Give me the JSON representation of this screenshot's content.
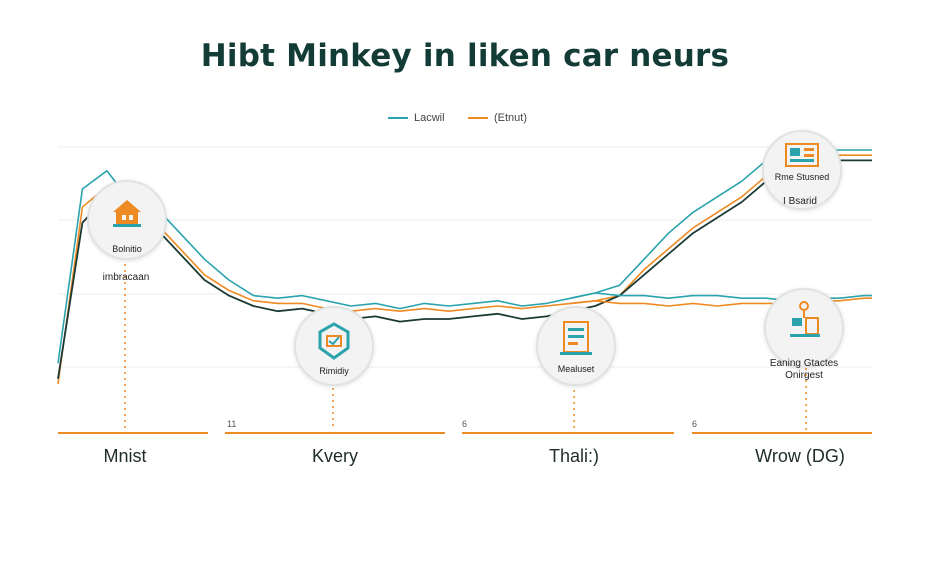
{
  "title": "Hibt Minkey in liken car neurs",
  "legend": [
    {
      "label": "Lacwil",
      "color": "#2aa3ad"
    },
    {
      "label": "(Etnut)",
      "color": "#ee8a22"
    }
  ],
  "sections": [
    {
      "label": "Mnist",
      "tick": ""
    },
    {
      "label": "Kvery",
      "tick": "11"
    },
    {
      "label": "Thali:)",
      "tick": "6"
    },
    {
      "label": "Wrow (DG)",
      "tick": "6"
    }
  ],
  "badges": [
    {
      "label": "Bolnitio",
      "icon": "house-icon"
    },
    {
      "label": "Rimidiy",
      "icon": "shield-icon"
    },
    {
      "label": "Mealuset",
      "icon": "document-icon"
    },
    {
      "label": "Rme Stusned",
      "icon": "board-icon"
    },
    {
      "label": "",
      "icon": "tools-icon"
    }
  ],
  "annotations": [
    {
      "text": "imbracaan"
    },
    {
      "text": "I Bsarid"
    },
    {
      "text": "Eaning Gtactes Onirgest"
    }
  ],
  "colors": {
    "teal": "#2aa3ad",
    "orange": "#ee8a22",
    "dark": "#1b3a36"
  },
  "chart_data": {
    "type": "line",
    "title": "Hibt Minkey in liken car neurs",
    "xlabel": "",
    "ylabel": "",
    "x": [
      0,
      3,
      6,
      9,
      12,
      15,
      18,
      21,
      24,
      27,
      30,
      33,
      36,
      39,
      42,
      45,
      48,
      51,
      54,
      57,
      60,
      63,
      66,
      69,
      72,
      75,
      78,
      81,
      84,
      87,
      90,
      93,
      96,
      99,
      100
    ],
    "ylim": [
      0,
      100
    ],
    "grid": true,
    "legend_position": "top-center",
    "series": [
      {
        "name": "Lacwil",
        "color": "#2aa3ad",
        "values": [
          18,
          85,
          92,
          80,
          78,
          68,
          58,
          50,
          44,
          43,
          44,
          42,
          40,
          41,
          39,
          41,
          40,
          41,
          42,
          40,
          41,
          43,
          45,
          48,
          58,
          68,
          76,
          82,
          88,
          96,
          100,
          100,
          100,
          100,
          100
        ]
      },
      {
        "name": "(Etnut)",
        "color": "#ee8a22",
        "values": [
          10,
          78,
          86,
          74,
          72,
          62,
          52,
          46,
          42,
          41,
          41,
          39,
          38,
          39,
          38,
          39,
          38,
          39,
          40,
          39,
          40,
          41,
          42,
          44,
          54,
          62,
          70,
          76,
          82,
          90,
          98,
          98,
          98,
          98,
          98
        ]
      },
      {
        "name": "",
        "color": "#1b3a36",
        "values": [
          12,
          72,
          82,
          72,
          70,
          60,
          50,
          44,
          40,
          38,
          39,
          37,
          35,
          36,
          34,
          35,
          35,
          36,
          37,
          35,
          36,
          38,
          40,
          44,
          52,
          60,
          68,
          74,
          80,
          88,
          96,
          96,
          96,
          96,
          96
        ]
      },
      {
        "name": "",
        "color": "#2aa3ad",
        "values": [
          null,
          null,
          null,
          null,
          null,
          null,
          null,
          null,
          null,
          null,
          null,
          null,
          null,
          null,
          null,
          null,
          null,
          null,
          null,
          null,
          null,
          43,
          45,
          44,
          44,
          43,
          44,
          44,
          43,
          43,
          42,
          43,
          43,
          44,
          44
        ]
      },
      {
        "name": "",
        "color": "#ee8a22",
        "values": [
          null,
          null,
          null,
          null,
          null,
          null,
          null,
          null,
          null,
          null,
          null,
          null,
          null,
          null,
          null,
          null,
          null,
          null,
          null,
          null,
          null,
          41,
          42,
          41,
          41,
          40,
          41,
          40,
          41,
          41,
          41,
          42,
          42,
          43,
          43
        ]
      }
    ]
  }
}
